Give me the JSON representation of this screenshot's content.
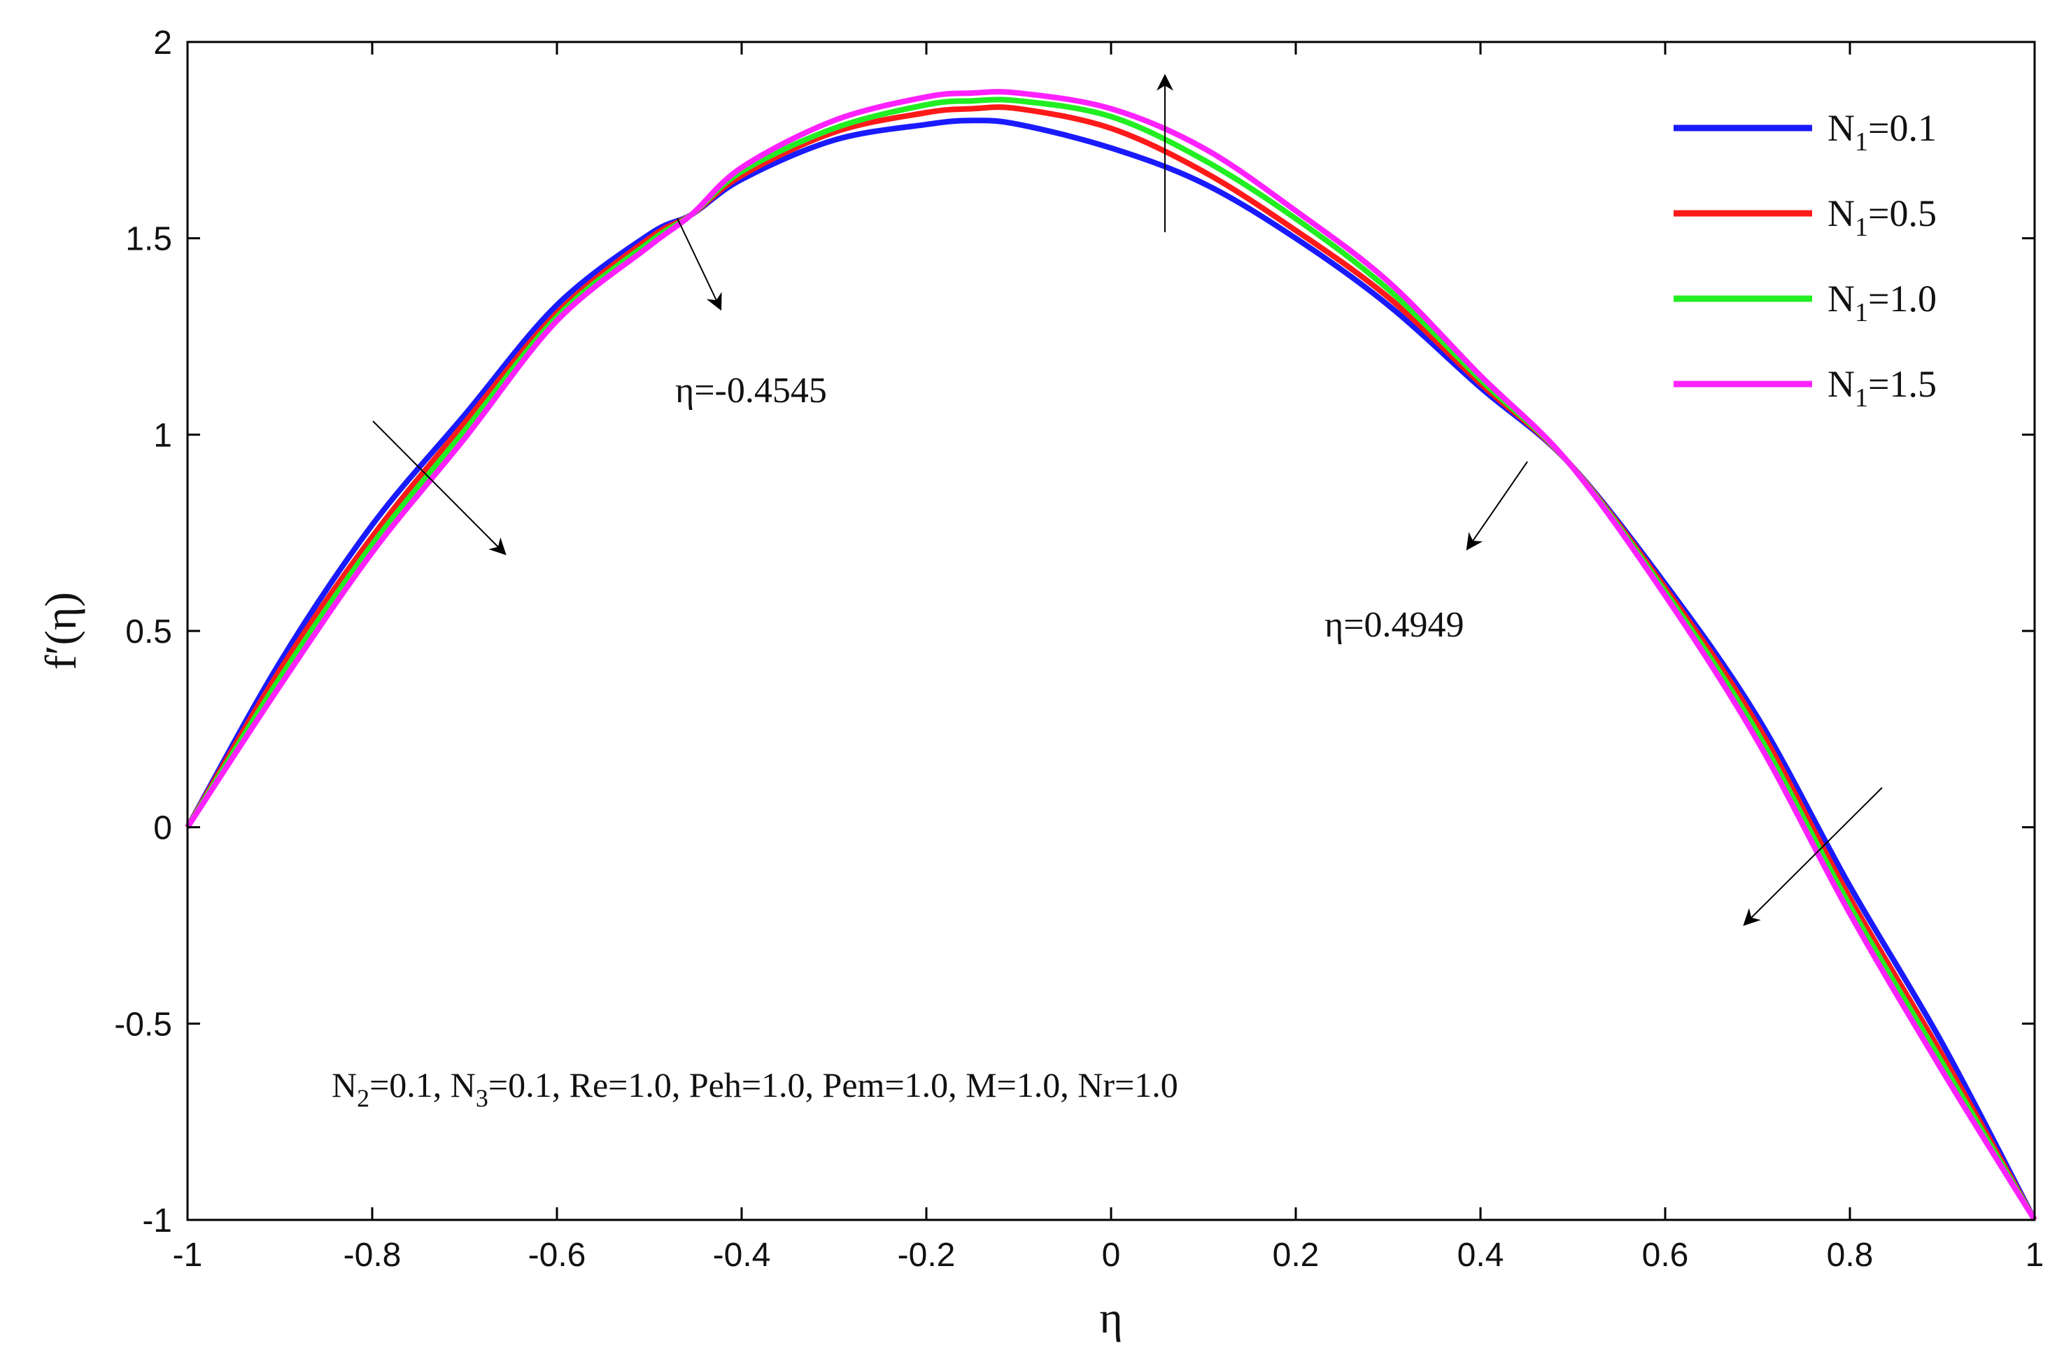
{
  "chart_data": {
    "type": "line",
    "xlabel": "η",
    "ylabel": "f′(η)",
    "xlim": [
      -1,
      1
    ],
    "ylim": [
      -1,
      2
    ],
    "xticks": [
      -1,
      -0.8,
      -0.6,
      -0.4,
      -0.2,
      0,
      0.2,
      0.4,
      0.6,
      0.8,
      1
    ],
    "yticks": [
      -1,
      -0.5,
      0,
      0.5,
      1,
      1.5,
      2
    ],
    "xtick_labels": [
      "-1",
      "-0.8",
      "-0.6",
      "-0.4",
      "-0.2",
      "0",
      "0.2",
      "0.4",
      "0.6",
      "0.8",
      "1"
    ],
    "ytick_labels": [
      "-1",
      "-0.5",
      "0",
      "0.5",
      "1",
      "1.5",
      "2"
    ],
    "grid": false,
    "legend_position": "top-right",
    "x": [
      -1.0,
      -0.9,
      -0.8,
      -0.7,
      -0.6,
      -0.5,
      -0.4545,
      -0.4,
      -0.3,
      -0.2,
      -0.15,
      -0.1,
      0.0,
      0.1,
      0.2,
      0.3,
      0.4,
      0.4949,
      0.6,
      0.7,
      0.8,
      0.9,
      1.0
    ],
    "series": [
      {
        "name": "N1=0.1",
        "name_main": "N",
        "name_sub": "1",
        "name_rest": "=0.1",
        "color": "#1a1aff",
        "values": [
          0.0,
          0.42,
          0.77,
          1.05,
          1.33,
          1.51,
          1.56,
          1.65,
          1.75,
          1.79,
          1.8,
          1.79,
          1.73,
          1.64,
          1.5,
          1.33,
          1.12,
          0.93,
          0.62,
          0.28,
          -0.15,
          -0.55,
          -1.0
        ]
      },
      {
        "name": "N1=0.5",
        "name_main": "N",
        "name_sub": "1",
        "name_rest": "=0.5",
        "color": "#ff1a1a",
        "values": [
          0.0,
          0.4,
          0.74,
          1.03,
          1.31,
          1.5,
          1.56,
          1.66,
          1.77,
          1.82,
          1.83,
          1.83,
          1.78,
          1.67,
          1.52,
          1.35,
          1.13,
          0.93,
          0.61,
          0.26,
          -0.18,
          -0.58,
          -1.0
        ]
      },
      {
        "name": "N1=1.0",
        "name_main": "N",
        "name_sub": "1",
        "name_rest": "=1.0",
        "color": "#22ee22",
        "values": [
          0.0,
          0.38,
          0.72,
          1.01,
          1.3,
          1.49,
          1.56,
          1.67,
          1.78,
          1.84,
          1.85,
          1.85,
          1.81,
          1.7,
          1.55,
          1.37,
          1.14,
          0.93,
          0.6,
          0.24,
          -0.2,
          -0.6,
          -1.0
        ]
      },
      {
        "name": "N1=1.5",
        "name_main": "N",
        "name_sub": "1",
        "name_rest": "=1.5",
        "color": "#ff22ff",
        "values": [
          0.0,
          0.36,
          0.7,
          0.99,
          1.29,
          1.48,
          1.56,
          1.68,
          1.8,
          1.86,
          1.87,
          1.87,
          1.83,
          1.73,
          1.57,
          1.39,
          1.15,
          0.93,
          0.59,
          0.22,
          -0.22,
          -0.62,
          -1.0
        ]
      }
    ],
    "annotations": {
      "left_label": "η=-0.4545",
      "right_label": "η=0.4949",
      "params_parts": [
        {
          "t": "N",
          "sub": false
        },
        {
          "t": "2",
          "sub": true
        },
        {
          "t": "=0.1, N",
          "sub": false
        },
        {
          "t": "3",
          "sub": true
        },
        {
          "t": "=0.1, Re=1.0, Peh=1.0, Pem=1.0, M=1.0, Nr=1.0",
          "sub": false
        }
      ]
    }
  }
}
